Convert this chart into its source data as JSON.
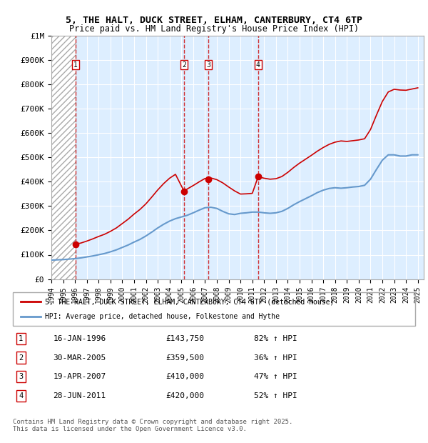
{
  "title": "5, THE HALT, DUCK STREET, ELHAM, CANTERBURY, CT4 6TP",
  "subtitle": "Price paid vs. HM Land Registry's House Price Index (HPI)",
  "legend_line1": "5, THE HALT, DUCK STREET, ELHAM, CANTERBURY, CT4 6TP (detached house)",
  "legend_line2": "HPI: Average price, detached house, Folkestone and Hythe",
  "footer": "Contains HM Land Registry data © Crown copyright and database right 2025.\nThis data is licensed under the Open Government Licence v3.0.",
  "transactions": [
    {
      "num": 1,
      "date": "16-JAN-1996",
      "price": 143750,
      "pct": "82%",
      "dir": "↑",
      "year_x": 1996.04
    },
    {
      "num": 2,
      "date": "30-MAR-2005",
      "price": 359500,
      "pct": "36%",
      "dir": "↑",
      "year_x": 2005.24
    },
    {
      "num": 3,
      "date": "19-APR-2007",
      "price": 410000,
      "pct": "47%",
      "dir": "↑",
      "year_x": 2007.29
    },
    {
      "num": 4,
      "date": "28-JUN-2011",
      "price": 420000,
      "pct": "52%",
      "dir": "↑",
      "year_x": 2011.49
    }
  ],
  "hpi_line_color": "#6699cc",
  "price_line_color": "#cc0000",
  "vline_color": "#cc0000",
  "hatch_color": "#aaaaaa",
  "background_color": "#ddeeff",
  "ylim": [
    0,
    1000000
  ],
  "xlim_start": 1994.0,
  "xlim_end": 2025.5,
  "hpi_data_x": [
    1994.0,
    1994.5,
    1995.0,
    1995.5,
    1996.0,
    1996.5,
    1997.0,
    1997.5,
    1998.0,
    1998.5,
    1999.0,
    1999.5,
    2000.0,
    2000.5,
    2001.0,
    2001.5,
    2002.0,
    2002.5,
    2003.0,
    2003.5,
    2004.0,
    2004.5,
    2005.0,
    2005.5,
    2006.0,
    2006.5,
    2007.0,
    2007.5,
    2008.0,
    2008.5,
    2009.0,
    2009.5,
    2010.0,
    2010.5,
    2011.0,
    2011.5,
    2012.0,
    2012.5,
    2013.0,
    2013.5,
    2014.0,
    2014.5,
    2015.0,
    2015.5,
    2016.0,
    2016.5,
    2017.0,
    2017.5,
    2018.0,
    2018.5,
    2019.0,
    2019.5,
    2020.0,
    2020.5,
    2021.0,
    2021.5,
    2022.0,
    2022.5,
    2023.0,
    2023.5,
    2024.0,
    2024.5,
    2025.0
  ],
  "hpi_data_y": [
    78000,
    79000,
    80000,
    82000,
    84000,
    87000,
    91000,
    95000,
    100000,
    105000,
    112000,
    120000,
    130000,
    140000,
    152000,
    163000,
    177000,
    193000,
    210000,
    225000,
    238000,
    248000,
    255000,
    262000,
    272000,
    283000,
    293000,
    295000,
    290000,
    278000,
    268000,
    265000,
    270000,
    272000,
    275000,
    275000,
    272000,
    270000,
    272000,
    278000,
    290000,
    305000,
    318000,
    330000,
    342000,
    355000,
    365000,
    372000,
    375000,
    373000,
    375000,
    378000,
    380000,
    385000,
    410000,
    450000,
    488000,
    510000,
    510000,
    505000,
    505000,
    510000,
    510000
  ],
  "price_data_x": [
    1996.04,
    1996.1,
    1996.5,
    1997.0,
    1997.5,
    1998.0,
    1998.5,
    1999.0,
    1999.5,
    2000.0,
    2000.5,
    2001.0,
    2001.5,
    2002.0,
    2002.5,
    2003.0,
    2003.5,
    2004.0,
    2004.5,
    2005.24,
    2005.5,
    2006.0,
    2006.5,
    2007.0,
    2007.29,
    2007.5,
    2008.0,
    2008.5,
    2009.0,
    2009.5,
    2010.0,
    2010.5,
    2011.0,
    2011.49,
    2011.5,
    2012.0,
    2012.5,
    2013.0,
    2013.5,
    2014.0,
    2014.5,
    2015.0,
    2015.5,
    2016.0,
    2016.5,
    2017.0,
    2017.5,
    2018.0,
    2018.5,
    2019.0,
    2019.5,
    2020.0,
    2020.5,
    2021.0,
    2021.5,
    2022.0,
    2022.5,
    2023.0,
    2023.5,
    2024.0,
    2024.5,
    2025.0
  ],
  "price_data_y": [
    143750,
    144000,
    148000,
    156000,
    165000,
    175000,
    184000,
    196000,
    210000,
    228000,
    246000,
    267000,
    286000,
    309000,
    337000,
    366000,
    392000,
    414000,
    430000,
    359500,
    370000,
    384000,
    399000,
    413000,
    410000,
    415000,
    408000,
    395000,
    378000,
    362000,
    349000,
    350000,
    352000,
    420000,
    420000,
    414000,
    410000,
    412000,
    421000,
    438000,
    458000,
    476000,
    492000,
    508000,
    525000,
    540000,
    553000,
    562000,
    567000,
    565000,
    568000,
    571000,
    576000,
    614000,
    673000,
    729000,
    768000,
    779000,
    776000,
    775000,
    780000,
    785000
  ],
  "yticks": [
    0,
    100000,
    200000,
    300000,
    400000,
    500000,
    600000,
    700000,
    800000,
    900000,
    1000000
  ],
  "ytick_labels": [
    "£0",
    "£100K",
    "£200K",
    "£300K",
    "£400K",
    "£500K",
    "£600K",
    "£700K",
    "£800K",
    "£900K",
    "£1M"
  ],
  "xtick_years": [
    1994,
    1995,
    1996,
    1997,
    1998,
    1999,
    2000,
    2001,
    2002,
    2003,
    2004,
    2005,
    2006,
    2007,
    2008,
    2009,
    2010,
    2011,
    2012,
    2013,
    2014,
    2015,
    2016,
    2017,
    2018,
    2019,
    2020,
    2021,
    2022,
    2023,
    2024,
    2025
  ]
}
